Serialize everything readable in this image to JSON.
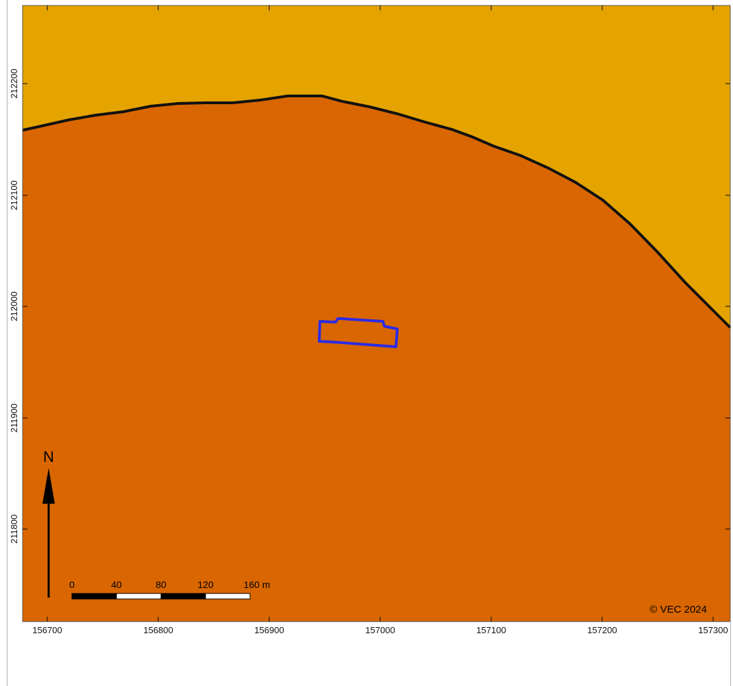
{
  "map": {
    "x_ticks": [
      "156700",
      "156800",
      "156900",
      "157000",
      "157100",
      "157200",
      "157300"
    ],
    "y_ticks": [
      "212200",
      "212100",
      "212000",
      "211900",
      "211800"
    ],
    "north_label": "N",
    "scale_bar": {
      "labels": [
        "0",
        "40",
        "80",
        "120",
        "160 m"
      ]
    },
    "copyright": "© VEC 2024",
    "colors": {
      "upper_region": "#E5A300",
      "lower_region": "#D96600",
      "boundary": "#111111",
      "site_outline": "#2B2BE6",
      "frame": "#555555"
    }
  }
}
